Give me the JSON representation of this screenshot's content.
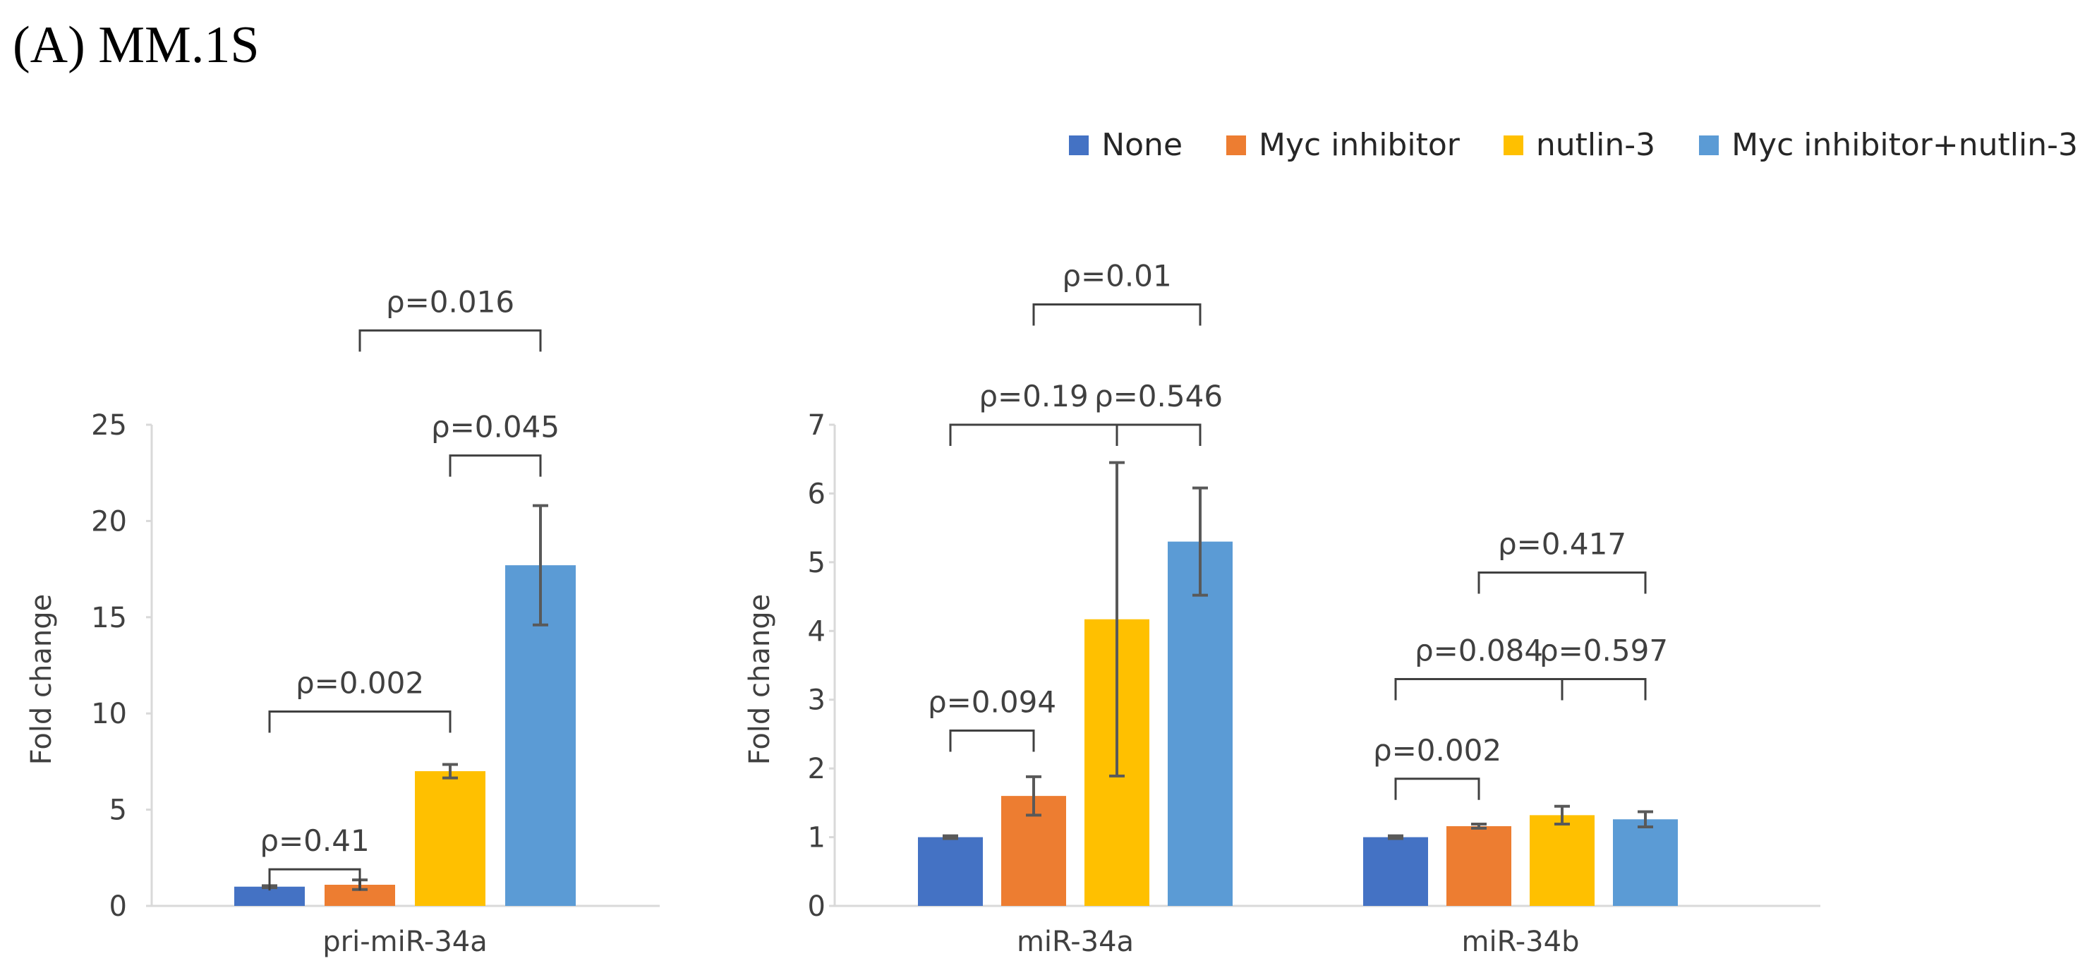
{
  "title": "(A) MM.1S",
  "legend": [
    {
      "label": "None",
      "color": "#4472C4"
    },
    {
      "label": "Myc inhibitor",
      "color": "#ED7D31"
    },
    {
      "label": "nutlin-3",
      "color": "#FFC000"
    },
    {
      "label": "Myc inhibitor+nutlin-3",
      "color": "#5B9BD5"
    }
  ],
  "chart_data": [
    {
      "type": "bar",
      "title": "",
      "ylabel": "Fold change",
      "xlabel": "",
      "ylim": [
        0,
        25
      ],
      "yticks": [
        0,
        5,
        10,
        15,
        20,
        25
      ],
      "categories": [
        "pri-miR-34a"
      ],
      "series": [
        {
          "name": "None",
          "values": [
            1.0
          ],
          "errors": [
            0.05
          ]
        },
        {
          "name": "Myc inhibitor",
          "values": [
            1.1
          ],
          "errors": [
            0.25
          ]
        },
        {
          "name": "nutlin-3",
          "values": [
            7.0
          ],
          "errors": [
            0.35
          ]
        },
        {
          "name": "Myc inhibitor+nutlin-3",
          "values": [
            17.7
          ],
          "errors": [
            3.1
          ]
        }
      ],
      "annotations": [
        {
          "label": "ρ=0.41",
          "group": 0,
          "from": 0,
          "to": 1,
          "level": 1.9
        },
        {
          "label": "ρ=0.002",
          "group": 0,
          "from": 0,
          "to": 2,
          "level": 10.1
        },
        {
          "label": "ρ=0.045",
          "group": 0,
          "from": 2,
          "to": 3,
          "level": 23.4
        },
        {
          "label": "ρ=0.016",
          "group": 0,
          "from": 1,
          "to": 3,
          "level": 29.9
        }
      ]
    },
    {
      "type": "bar",
      "title": "",
      "ylabel": "Fold change",
      "xlabel": "",
      "ylim": [
        0,
        7
      ],
      "yticks": [
        0,
        1,
        2,
        3,
        4,
        5,
        6,
        7
      ],
      "categories": [
        "miR-34a",
        "miR-34b"
      ],
      "series": [
        {
          "name": "None",
          "values": [
            1.0,
            1.0
          ],
          "errors": [
            0.02,
            0.02
          ]
        },
        {
          "name": "Myc inhibitor",
          "values": [
            1.6,
            1.16
          ],
          "errors": [
            0.28,
            0.03
          ]
        },
        {
          "name": "nutlin-3",
          "values": [
            4.17,
            1.32
          ],
          "errors": [
            2.28,
            0.13
          ]
        },
        {
          "name": "Myc inhibitor+nutlin-3",
          "values": [
            5.3,
            1.26
          ],
          "errors": [
            0.78,
            0.11
          ]
        }
      ],
      "annotations": [
        {
          "label": "ρ=0.094",
          "group": 0,
          "from": 0,
          "to": 1,
          "level": 2.55
        },
        {
          "label": "ρ=0.19",
          "group": 0,
          "from": 0,
          "to": 2,
          "level": 7.0
        },
        {
          "label": "ρ=0.546",
          "group": 0,
          "from": 2,
          "to": 3,
          "level": 7.0
        },
        {
          "label": "ρ=0.01",
          "group": 0,
          "from": 1,
          "to": 3,
          "level": 8.75
        },
        {
          "label": "ρ=0.002",
          "group": 1,
          "from": 0,
          "to": 1,
          "level": 1.85
        },
        {
          "label": "ρ=0.084",
          "group": 1,
          "from": 0,
          "to": 2,
          "level": 3.3
        },
        {
          "label": "ρ=0.597",
          "group": 1,
          "from": 2,
          "to": 3,
          "level": 3.3
        },
        {
          "label": "ρ=0.417",
          "group": 1,
          "from": 1,
          "to": 3,
          "level": 4.85
        }
      ]
    }
  ]
}
